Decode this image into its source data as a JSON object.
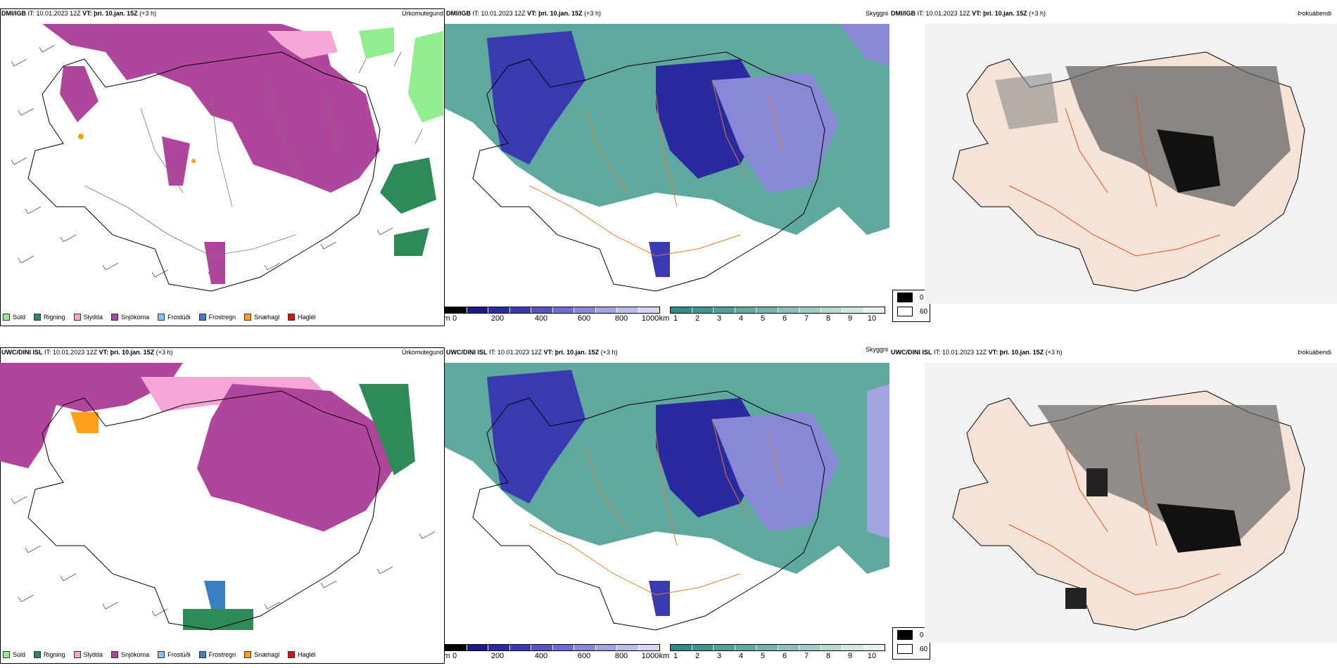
{
  "rows": [
    {
      "model": "DMI/IGB",
      "panels": [
        {
          "it_label": "IT:",
          "it_value": "10.01.2023 12Z",
          "vt_label": "VT:",
          "vt_value": "þri. 10.jan. 15Z",
          "offset": "(+3 h)",
          "product": "Úrkomutegund"
        },
        {
          "it_label": "IT:",
          "it_value": "10.01.2023 12Z",
          "vt_label": "VT:",
          "vt_value": "þri. 10.jan. 15Z",
          "offset": "(+3 h)",
          "product": "Skyggni"
        },
        {
          "it_label": "IT:",
          "it_value": "10.01.2023 12Z",
          "vt_label": "VT:",
          "vt_value": "þri. 10.jan. 15Z",
          "offset": "(+3 h)",
          "product": "Þokuábendi"
        }
      ]
    },
    {
      "model": "UWC/DINI ISL",
      "panels": [
        {
          "it_label": "IT:",
          "it_value": "10.01.2023 12Z",
          "vt_label": "VT:",
          "vt_value": "þri. 10.jan. 15Z",
          "offset": "(+3 h)",
          "product": "Úrkomutegund"
        },
        {
          "it_label": "IT:",
          "it_value": "10.01.2023 12Z",
          "vt_label": "VT:",
          "vt_value": "þri. 10.jan. 15Z",
          "offset": "(+3 h)",
          "product": "Skyggni"
        },
        {
          "it_label": "IT:",
          "it_value": "10.01.2023 12Z",
          "vt_label": "VT:",
          "vt_value": "þri. 10.jan. 15Z",
          "offset": "(+3 h)",
          "product": "Þokuábendi"
        }
      ]
    }
  ],
  "precip_legend": [
    {
      "label": "Súld",
      "color": "#90ee90"
    },
    {
      "label": "Rigning",
      "color": "#2e8b57"
    },
    {
      "label": "Slydda",
      "color": "#f4a6d7"
    },
    {
      "label": "Snjókoma",
      "color": "#b0459c"
    },
    {
      "label": "Frostúði",
      "color": "#87bfef"
    },
    {
      "label": "Frostregn",
      "color": "#3a7fc4"
    },
    {
      "label": "Snæhagl",
      "color": "#ff9f1a"
    },
    {
      "label": "Haglél",
      "color": "#e01010"
    }
  ],
  "elev_bar": {
    "unit": "m",
    "ticks": [
      "0",
      "200",
      "400",
      "600",
      "800",
      "1000"
    ],
    "colors": [
      "#000000",
      "#1a1a80",
      "#2a2aa0",
      "#3a3ab0",
      "#5555c0",
      "#6e6ecc",
      "#8888d6",
      "#a3a3e0",
      "#bdbde9",
      "#d6d6f2"
    ]
  },
  "vis_bar": {
    "unit": "km",
    "ticks": [
      "1",
      "2",
      "3",
      "4",
      "5",
      "6",
      "7",
      "8",
      "9",
      "10"
    ],
    "colors": [
      "#2f8c82",
      "#3d958c",
      "#4f9f96",
      "#62aaa1",
      "#76b5ad",
      "#8cc1ba",
      "#a2cdc7",
      "#b9d9d4",
      "#d0e6e2",
      "#e8f2f0"
    ]
  },
  "cloud_legend": [
    {
      "label": "0",
      "color": "#000000"
    },
    {
      "label": "60",
      "color": "#ffffff"
    }
  ]
}
